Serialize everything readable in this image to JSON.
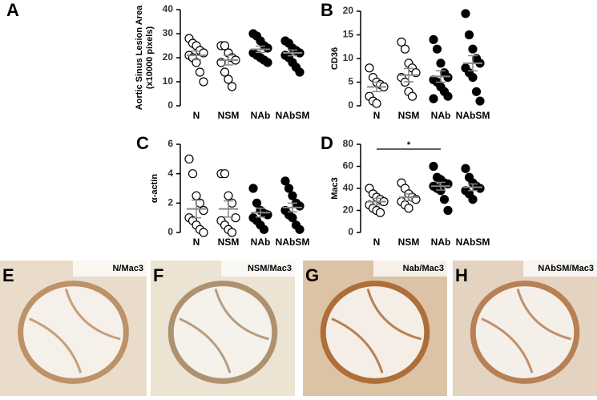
{
  "chart_data": [
    {
      "type": "strip",
      "panel_label": "A",
      "ylabel": [
        "Aortic Sinus Lesion Area",
        "(x10000 pixels)"
      ],
      "categories": [
        "N",
        "NSM",
        "NAb",
        "NAbSM"
      ],
      "values": [
        [
          28,
          26,
          25,
          23,
          22,
          21,
          20,
          18,
          14,
          10
        ],
        [
          25,
          25,
          22,
          20,
          19,
          18,
          14,
          11,
          8
        ],
        [
          30,
          29,
          27,
          25,
          24,
          22,
          21,
          20,
          19,
          18
        ],
        [
          27,
          26,
          24,
          23,
          22,
          21,
          20,
          18,
          16,
          14
        ]
      ],
      "means": [
        21,
        19,
        23.5,
        22
      ],
      "sems": [
        1.8,
        2,
        1.3,
        1.2
      ],
      "colors": [
        "#ffffff",
        "#ffffff",
        "#000000",
        "#000000"
      ],
      "ylim": [
        0,
        40
      ],
      "yticks": [
        0,
        10,
        20,
        30,
        40
      ]
    },
    {
      "type": "strip",
      "panel_label": "B",
      "ylabel": [
        "CD36"
      ],
      "categories": [
        "N",
        "NSM",
        "NAb",
        "NAbSM"
      ],
      "values": [
        [
          8,
          6,
          5,
          4.5,
          4,
          2,
          1,
          0.5
        ],
        [
          13.5,
          12,
          9,
          8,
          7,
          6,
          5,
          3,
          2
        ],
        [
          14,
          12,
          9,
          7,
          6,
          5.5,
          5,
          4,
          3,
          2,
          1.5
        ],
        [
          19.5,
          15,
          12,
          10,
          9,
          8,
          7,
          6,
          3,
          1
        ]
      ],
      "means": [
        4,
        6.5,
        6.2,
        9
      ],
      "sems": [
        1,
        1.4,
        1.2,
        1.6
      ],
      "colors": [
        "#ffffff",
        "#ffffff",
        "#000000",
        "#000000"
      ],
      "ylim": [
        0,
        20
      ],
      "yticks": [
        0,
        5,
        10,
        15,
        20
      ]
    },
    {
      "type": "strip",
      "panel_label": "C",
      "ylabel": [
        "α-actin"
      ],
      "categories": [
        "N",
        "NSM",
        "NAb",
        "NAbSM"
      ],
      "values": [
        [
          5,
          4,
          2.5,
          2,
          1.5,
          1,
          0.8,
          0.5,
          0.2,
          0
        ],
        [
          4,
          4,
          2.5,
          2,
          1,
          0.8,
          0.5,
          0.2,
          0
        ],
        [
          3,
          2,
          1.5,
          1.3,
          1.2,
          1,
          0.8,
          0.5,
          0.2
        ],
        [
          3.5,
          3,
          2.5,
          2,
          1.8,
          1.5,
          1.2,
          1,
          0.5,
          0.2
        ]
      ],
      "means": [
        1.6,
        1.6,
        1.35,
        1.7
      ],
      "sems": [
        0.6,
        0.55,
        0.3,
        0.3
      ],
      "colors": [
        "#ffffff",
        "#ffffff",
        "#000000",
        "#000000"
      ],
      "ylim": [
        0,
        6
      ],
      "yticks": [
        0,
        2,
        4,
        6
      ]
    },
    {
      "type": "strip",
      "panel_label": "D",
      "ylabel": [
        "Mac3"
      ],
      "categories": [
        "N",
        "NSM",
        "NAb",
        "NAbSM"
      ],
      "values": [
        [
          40,
          35,
          32,
          30,
          28,
          25,
          22,
          20,
          18
        ],
        [
          45,
          40,
          35,
          32,
          30,
          28,
          25,
          22
        ],
        [
          60,
          50,
          48,
          45,
          44,
          42,
          40,
          38,
          30,
          20
        ],
        [
          58,
          50,
          45,
          42,
          40,
          38,
          35,
          30
        ]
      ],
      "means": [
        28,
        32,
        42,
        41
      ],
      "sems": [
        3,
        3,
        3.5,
        3
      ],
      "colors": [
        "#ffffff",
        "#ffffff",
        "#000000",
        "#000000"
      ],
      "ylim": [
        0,
        80
      ],
      "yticks": [
        0,
        20,
        40,
        60,
        80
      ],
      "significance": {
        "label": "*",
        "between": [
          "N",
          "NAb"
        ]
      }
    }
  ],
  "panels": [
    {
      "letter": "E",
      "caption": "N/Mac3"
    },
    {
      "letter": "F",
      "caption": "NSM/Mac3"
    },
    {
      "letter": "G",
      "caption": "Nab/Mac3"
    },
    {
      "letter": "H",
      "caption": "NAbSM/Mac3"
    }
  ]
}
